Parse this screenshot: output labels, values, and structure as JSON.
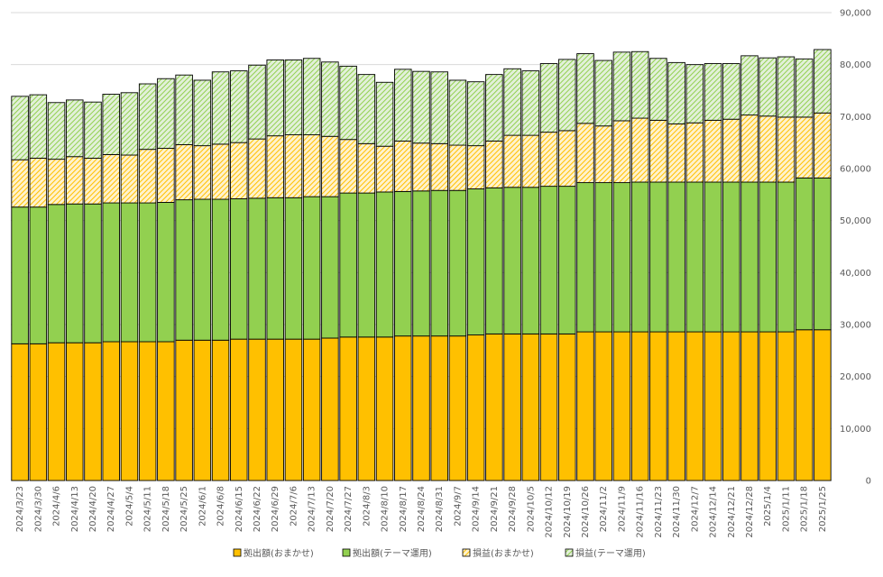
{
  "chart_data": {
    "type": "bar",
    "stacked": true,
    "title": "",
    "xlabel": "",
    "ylabel": "",
    "ylim": [
      0,
      90000
    ],
    "ytick_step": 10000,
    "ytick_labels": [
      "0",
      "10,000",
      "20,000",
      "30,000",
      "40,000",
      "50,000",
      "60,000",
      "70,000",
      "80,000",
      "90,000"
    ],
    "y_axis_position": "right",
    "grid": true,
    "legend_position": "bottom",
    "categories": [
      "2024/3/23",
      "2024/3/30",
      "2024/4/6",
      "2024/4/13",
      "2024/4/20",
      "2024/4/27",
      "2024/5/4",
      "2024/5/11",
      "2024/5/18",
      "2024/5/25",
      "2024/6/1",
      "2024/6/8",
      "2024/6/15",
      "2024/6/22",
      "2024/6/29",
      "2024/7/6",
      "2024/7/13",
      "2024/7/20",
      "2024/7/27",
      "2024/8/3",
      "2024/8/10",
      "2024/8/17",
      "2024/8/24",
      "2024/8/31",
      "2024/9/7",
      "2024/9/14",
      "2024/9/21",
      "2024/9/28",
      "2024/10/5",
      "2024/10/12",
      "2024/10/19",
      "2024/10/26",
      "2024/11/2",
      "2024/11/9",
      "2024/11/16",
      "2024/11/23",
      "2024/11/30",
      "2024/12/7",
      "2024/12/14",
      "2024/12/21",
      "2024/12/28",
      "2025/1/4",
      "2025/1/11",
      "2025/1/18",
      "2025/1/25"
    ],
    "series": [
      {
        "name": "拠出額(おまかせ)",
        "color": "#ffc000",
        "pattern": "solid",
        "values": [
          26300,
          26300,
          26500,
          26500,
          26500,
          26700,
          26700,
          26700,
          26700,
          27000,
          27000,
          27000,
          27200,
          27200,
          27200,
          27200,
          27200,
          27400,
          27600,
          27600,
          27600,
          27800,
          27800,
          27800,
          27800,
          28000,
          28200,
          28200,
          28200,
          28200,
          28200,
          28600,
          28600,
          28600,
          28600,
          28600,
          28600,
          28600,
          28600,
          28600,
          28600,
          28600,
          28600,
          29000,
          29000
        ]
      },
      {
        "name": "拠出額(テーマ運用)",
        "color": "#92d050",
        "pattern": "solid",
        "values": [
          26300,
          26300,
          26600,
          26700,
          26700,
          26700,
          26700,
          26700,
          26800,
          27000,
          27100,
          27100,
          27000,
          27100,
          27200,
          27200,
          27400,
          27200,
          27700,
          27700,
          27900,
          27800,
          27900,
          28000,
          28000,
          28100,
          28100,
          28200,
          28200,
          28400,
          28400,
          28700,
          28700,
          28700,
          28800,
          28800,
          28800,
          28800,
          28800,
          28800,
          28800,
          28800,
          28800,
          29200,
          29200
        ]
      },
      {
        "name": "損益(おまかせ)",
        "color": "#ffc000",
        "pattern": "hatch",
        "values": [
          9100,
          9400,
          8700,
          9100,
          8800,
          9300,
          9200,
          10300,
          10400,
          10600,
          10300,
          10600,
          10800,
          11400,
          11900,
          12100,
          11900,
          11600,
          10300,
          9500,
          8800,
          9700,
          9200,
          9000,
          8700,
          8300,
          9000,
          10000,
          10000,
          10400,
          10700,
          11400,
          10900,
          11900,
          12300,
          11900,
          11200,
          11400,
          11900,
          12100,
          12900,
          12700,
          12500,
          11700,
          12500
        ]
      },
      {
        "name": "損益(テーマ運用)",
        "color": "#92d050",
        "pattern": "hatch",
        "values": [
          12200,
          12200,
          10900,
          10900,
          10800,
          11600,
          12000,
          12600,
          13400,
          13400,
          12600,
          13900,
          13800,
          14200,
          14600,
          14400,
          14700,
          14300,
          14100,
          13300,
          12300,
          13800,
          13800,
          13800,
          12500,
          12300,
          12800,
          12800,
          12400,
          13200,
          13700,
          13400,
          12600,
          13200,
          12800,
          11900,
          11800,
          11200,
          10900,
          10700,
          11400,
          11200,
          11600,
          11200,
          12200
        ]
      }
    ]
  }
}
